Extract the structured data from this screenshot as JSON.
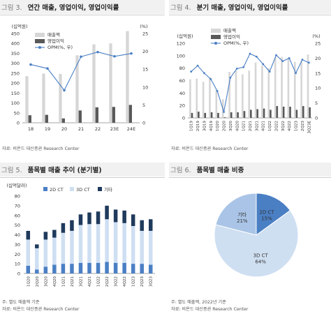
{
  "panels": [
    {
      "fig": "그림 3.",
      "title": "연간 매출, 영업이익, 영업이익률",
      "source": "자료: 비욘드 대신증권 Research Center",
      "note": ""
    },
    {
      "fig": "그림 4.",
      "title": "분기 매출, 영업이익, 영업이익률",
      "source": "자료: 비욘드 대신증권 Research Center",
      "note": ""
    },
    {
      "fig": "그림 5.",
      "title": "품목별 매출 추이 (분기별)",
      "source": "자료: 비욘드 대신증권 Research Center",
      "note": "주: 별도 매출액 기준"
    },
    {
      "fig": "그림 6.",
      "title": "품목별 매출 비중",
      "source": "자료: 비욘드 대신증권 Research Center",
      "note": "주: 별도 매출액, 2022년 기준"
    }
  ],
  "chart_data": [
    {
      "type": "bar",
      "unit_left": "(십억원)",
      "unit_right": "(%)",
      "categories": [
        "18",
        "19",
        "20",
        "21",
        "22",
        "23E",
        "24E"
      ],
      "series": [
        {
          "name": "매출액",
          "kind": "bar",
          "color": "#d6d6d6",
          "values": [
            235,
            248,
            246,
            340,
            395,
            400,
            462
          ]
        },
        {
          "name": "영업이익",
          "kind": "bar",
          "color": "#595959",
          "values": [
            38,
            40,
            22,
            62,
            78,
            80,
            90
          ]
        },
        {
          "name": "OPM(%, 우)",
          "kind": "line",
          "axis": "right",
          "color": "#4a7fc4",
          "values": [
            16.3,
            15.2,
            9.1,
            18.5,
            19.8,
            18.6,
            19.4
          ]
        }
      ],
      "ylim_left": [
        0,
        450
      ],
      "yticks_left": [
        0,
        50,
        100,
        150,
        200,
        250,
        300,
        350,
        400,
        450
      ],
      "ylim_right": [
        0,
        25
      ],
      "yticks_right": [
        0,
        5,
        10,
        15,
        20,
        25
      ],
      "legend": "top-left"
    },
    {
      "type": "bar",
      "unit_left": "(십억원)",
      "unit_right": "(%)",
      "categories": [
        "1Q19",
        "2Q19",
        "3Q19",
        "4Q19",
        "1Q20",
        "2Q20",
        "3Q20",
        "4Q20",
        "1Q21",
        "2Q21",
        "3Q21",
        "4Q21",
        "1Q22",
        "2Q22",
        "3Q22",
        "4Q22",
        "1Q23",
        "2Q23",
        "3Q23E"
      ],
      "series": [
        {
          "name": "매출액",
          "kind": "bar",
          "color": "#d6d6d6",
          "values": [
            62,
            63,
            58,
            65,
            45,
            30,
            74,
            76,
            70,
            76,
            89,
            84,
            80,
            97,
            98,
            95,
            90,
            92,
            102
          ]
        },
        {
          "name": "영업이익",
          "kind": "bar",
          "color": "#595959",
          "values": [
            8,
            10,
            8,
            9,
            8,
            1,
            9,
            9,
            11,
            13,
            14,
            15,
            13,
            19,
            18,
            18,
            13,
            19,
            17
          ]
        },
        {
          "name": "OPM(%, 우)",
          "kind": "line",
          "axis": "right",
          "color": "#4a7fc4",
          "values": [
            15.5,
            17.5,
            15.0,
            13.0,
            9.0,
            2.0,
            13.5,
            16.5,
            17.0,
            21.5,
            20.5,
            18.0,
            15.5,
            21.0,
            19.0,
            20.0,
            15.0,
            19.5,
            18.5
          ]
        }
      ],
      "ylim_left": [
        0,
        120
      ],
      "yticks_left": [
        0,
        20,
        40,
        60,
        80,
        100,
        120
      ],
      "ylim_right": [
        0,
        25
      ],
      "yticks_right": [
        0,
        5,
        10,
        15,
        20,
        25
      ],
      "legend": "top-left"
    },
    {
      "type": "bar",
      "stacked": true,
      "unit_left": "(십억달러)",
      "categories": [
        "1Q20",
        "2Q20",
        "3Q20",
        "4Q20",
        "1Q21",
        "2Q21",
        "3Q21",
        "4Q21",
        "1Q22",
        "2Q22",
        "3Q22",
        "4Q22",
        "1Q23",
        "2Q23",
        "3Q23"
      ],
      "series": [
        {
          "name": "2D CT",
          "color": "#4a7fc4",
          "values": [
            8,
            4,
            7,
            9,
            10,
            10,
            11,
            11,
            11,
            12,
            11,
            11,
            10,
            10,
            9
          ]
        },
        {
          "name": "3D CT",
          "color": "#cfdff2",
          "values": [
            27,
            22,
            28,
            28,
            32,
            34,
            39,
            40,
            40,
            44,
            42,
            41,
            39,
            34,
            35
          ]
        },
        {
          "name": "기타",
          "color": "#1f3a5c",
          "values": [
            9,
            4,
            8,
            8,
            10,
            11,
            11,
            12,
            13,
            14,
            13,
            13,
            12,
            11,
            12
          ]
        }
      ],
      "ylim": [
        0,
        80
      ],
      "yticks": [
        0,
        10,
        20,
        30,
        40,
        50,
        60,
        70,
        80
      ],
      "legend": "top-left"
    },
    {
      "type": "pie",
      "slices": [
        {
          "label": "2D CT",
          "value": 15,
          "text": "15%",
          "color": "#4a7fc4"
        },
        {
          "label": "3D CT",
          "value": 64,
          "text": "64%",
          "color": "#cfdff2"
        },
        {
          "label": "기타",
          "value": 21,
          "text": "21%",
          "color": "#a9c4e6"
        }
      ]
    }
  ]
}
